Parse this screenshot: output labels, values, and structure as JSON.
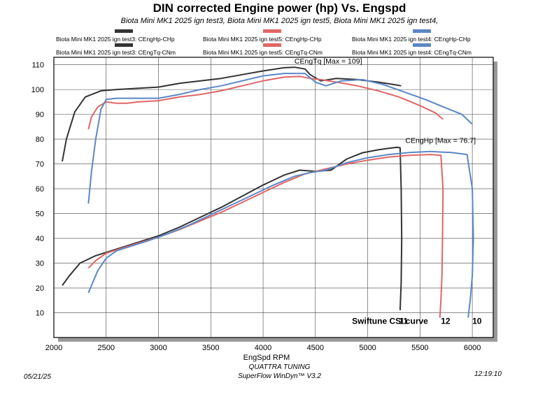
{
  "header": {
    "title": "DIN corrected Engine power (hp) Vs. Engspd",
    "subtitle": "Biota Mini MK1 2025 ign test3, Biota Mini MK1 2025 ign test5, Biota Mini MK1 2025 ign test4,"
  },
  "legend": [
    {
      "label": "Biota Mini MK1 2025 ign test3: CEngHp-CHp",
      "color": "#333333"
    },
    {
      "label": "Biota Mini MK1 2025 ign test5: CEngHp-CHp",
      "color": "#e06666"
    },
    {
      "label": "Biota Mini MK1 2025 ign test4: CEngHp-CHp",
      "color": "#5b87c5"
    },
    {
      "label": "Biota Mini MK1 2025 ign test3: CEngTq-CNm",
      "color": "#333333"
    },
    {
      "label": "Biota Mini MK1 2025 ign test5: CEngTq-CNm",
      "color": "#e06666"
    },
    {
      "label": "Biota Mini MK1 2025 ign test4: CEngTq-CNm",
      "color": "#5b87c5"
    }
  ],
  "footer": {
    "date": "05/21/25",
    "time": "12:19:10",
    "company": "QUATTRA TUNING",
    "software": "SuperFlow WinDyn™ V3.2"
  },
  "chart_data": {
    "type": "line",
    "title": "DIN corrected Engine power (hp) Vs. Engspd",
    "xlabel": "EngSpd RPM",
    "ylabel": "",
    "xlim": [
      2000,
      6200
    ],
    "ylim": [
      0,
      113
    ],
    "xticks": [
      2000,
      2500,
      3000,
      3500,
      4000,
      4500,
      5000,
      5500,
      6000
    ],
    "yticks": [
      10,
      20,
      30,
      40,
      50,
      60,
      70,
      80,
      90,
      100,
      110
    ],
    "grid": true,
    "annotations": [
      {
        "text": "CEngTq [Max = 109]",
        "x": 4300,
        "y": 110.5
      },
      {
        "text": "CEngHp [Max = 76.7]",
        "x": 5360,
        "y": 78.5
      },
      {
        "text": "Swiftune CSI curve",
        "x": 4850,
        "y": 5.5,
        "bold": true
      },
      {
        "text": "11",
        "x": 5300,
        "y": 5.5,
        "bold": true
      },
      {
        "text": "12",
        "x": 5700,
        "y": 5.5,
        "bold": true
      },
      {
        "text": "10",
        "x": 6000,
        "y": 5.5,
        "bold": true
      }
    ],
    "series": [
      {
        "name": "Biota Mini MK1 2025 ign test3: CEngHp-CHp",
        "color": "#333333",
        "x": [
          2080,
          2150,
          2250,
          2400,
          2550,
          2700,
          2850,
          3000,
          3200,
          3400,
          3600,
          3800,
          4000,
          4200,
          4350,
          4500,
          4650,
          4800,
          4950,
          5100,
          5200,
          5280,
          5310,
          5320,
          5325,
          5320,
          5310
        ],
        "y": [
          21,
          25,
          30,
          33,
          35,
          37,
          39,
          41,
          44.5,
          48.5,
          52.5,
          57,
          61.5,
          65.5,
          67.5,
          67,
          67.5,
          72,
          74.5,
          75.7,
          76.3,
          76.7,
          76.5,
          60,
          40,
          22,
          11
        ]
      },
      {
        "name": "Biota Mini MK1 2025 ign test5: CEngHp-CHp",
        "color": "#e06666",
        "x": [
          2330,
          2400,
          2500,
          2650,
          2800,
          3000,
          3200,
          3400,
          3600,
          3800,
          4000,
          4200,
          4400,
          4600,
          4800,
          5000,
          5200,
          5400,
          5600,
          5700,
          5720,
          5715,
          5710,
          5700,
          5690
        ],
        "y": [
          28,
          31,
          34,
          36,
          38,
          40.5,
          43.5,
          47,
          50.5,
          54.5,
          58.5,
          62.5,
          66,
          68,
          70,
          71.5,
          72.8,
          73.5,
          73.8,
          73.5,
          60,
          40,
          25,
          15,
          8
        ]
      },
      {
        "name": "Biota Mini MK1 2025 ign test4: CEngHp-CHp",
        "color": "#5b87c5",
        "x": [
          2330,
          2370,
          2420,
          2500,
          2600,
          2750,
          2900,
          3100,
          3300,
          3500,
          3700,
          3900,
          4100,
          4300,
          4450,
          4600,
          4800,
          5000,
          5200,
          5400,
          5600,
          5800,
          5950,
          6000,
          6010,
          6000,
          5980,
          5960
        ],
        "y": [
          18,
          22,
          27,
          32,
          35,
          37,
          39,
          42,
          45.5,
          49.5,
          53.5,
          57.5,
          61.5,
          65,
          66.5,
          67.5,
          70.5,
          72.5,
          73.8,
          74.6,
          75,
          74.6,
          73.8,
          60,
          40,
          25,
          15,
          8
        ]
      },
      {
        "name": "Biota Mini MK1 2025 ign test3: CEngTq-CNm",
        "color": "#333333",
        "x": [
          2080,
          2120,
          2200,
          2300,
          2450,
          2600,
          2800,
          3000,
          3200,
          3400,
          3600,
          3800,
          4000,
          4200,
          4300,
          4400,
          4450,
          4550,
          4700,
          4900,
          5100,
          5250,
          5320
        ],
        "y": [
          71,
          80,
          91,
          97,
          99.5,
          100,
          100.5,
          101,
          102.5,
          103.5,
          104.5,
          106,
          107.5,
          108.8,
          109,
          108.3,
          106,
          103.5,
          104.5,
          104,
          103,
          102,
          101.5
        ]
      },
      {
        "name": "Biota Mini MK1 2025 ign test5: CEngTq-CNm",
        "color": "#e06666",
        "x": [
          2330,
          2360,
          2420,
          2500,
          2600,
          2700,
          2800,
          3000,
          3200,
          3400,
          3600,
          3800,
          4000,
          4200,
          4350,
          4450,
          4550,
          4700,
          4900,
          5100,
          5300,
          5500,
          5650,
          5720
        ],
        "y": [
          84,
          89,
          93,
          95,
          94.5,
          94.5,
          95,
          95.5,
          97,
          98,
          99.5,
          101.5,
          103.5,
          105,
          105.3,
          104.5,
          104,
          103,
          101.5,
          99.5,
          97,
          93.5,
          90.5,
          88
        ]
      },
      {
        "name": "Biota Mini MK1 2025 ign test4: CEngTq-CNm",
        "color": "#5b87c5",
        "x": [
          2330,
          2360,
          2400,
          2450,
          2500,
          2600,
          2800,
          3000,
          3200,
          3400,
          3600,
          3800,
          4000,
          4200,
          4400,
          4500,
          4600,
          4750,
          4950,
          5150,
          5350,
          5550,
          5750,
          5900,
          6000
        ],
        "y": [
          54,
          67,
          80,
          92,
          96,
          96.5,
          96.5,
          96.5,
          98,
          100,
          101.5,
          103.5,
          105.5,
          106.5,
          106.5,
          103,
          101.5,
          103.5,
          104,
          102,
          99,
          96,
          92.5,
          90,
          86
        ]
      }
    ]
  }
}
